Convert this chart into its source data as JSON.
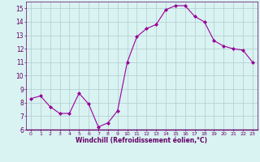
{
  "x": [
    0,
    1,
    2,
    3,
    4,
    5,
    6,
    7,
    8,
    9,
    10,
    11,
    12,
    13,
    14,
    15,
    16,
    17,
    18,
    19,
    20,
    21,
    22,
    23
  ],
  "y": [
    8.3,
    8.5,
    7.7,
    7.2,
    7.2,
    8.7,
    7.9,
    6.2,
    6.5,
    7.4,
    11.0,
    12.9,
    13.5,
    13.8,
    14.9,
    15.2,
    15.2,
    14.4,
    14.0,
    12.6,
    12.2,
    12.0,
    11.9,
    11.0
  ],
  "line_color": "#990099",
  "marker": "D",
  "marker_size": 2,
  "bg_color": "#d9f2f2",
  "grid_color": "#b0cccc",
  "xlabel": "Windchill (Refroidissement éolien,°C)",
  "ylim": [
    6,
    15.5
  ],
  "xlim": [
    -0.5,
    23.5
  ],
  "yticks": [
    6,
    7,
    8,
    9,
    10,
    11,
    12,
    13,
    14,
    15
  ],
  "xticks": [
    0,
    1,
    2,
    3,
    4,
    5,
    6,
    7,
    8,
    9,
    10,
    11,
    12,
    13,
    14,
    15,
    16,
    17,
    18,
    19,
    20,
    21,
    22,
    23
  ],
  "axis_label_color": "#660066",
  "tick_label_color": "#660066",
  "spine_color": "#660066"
}
